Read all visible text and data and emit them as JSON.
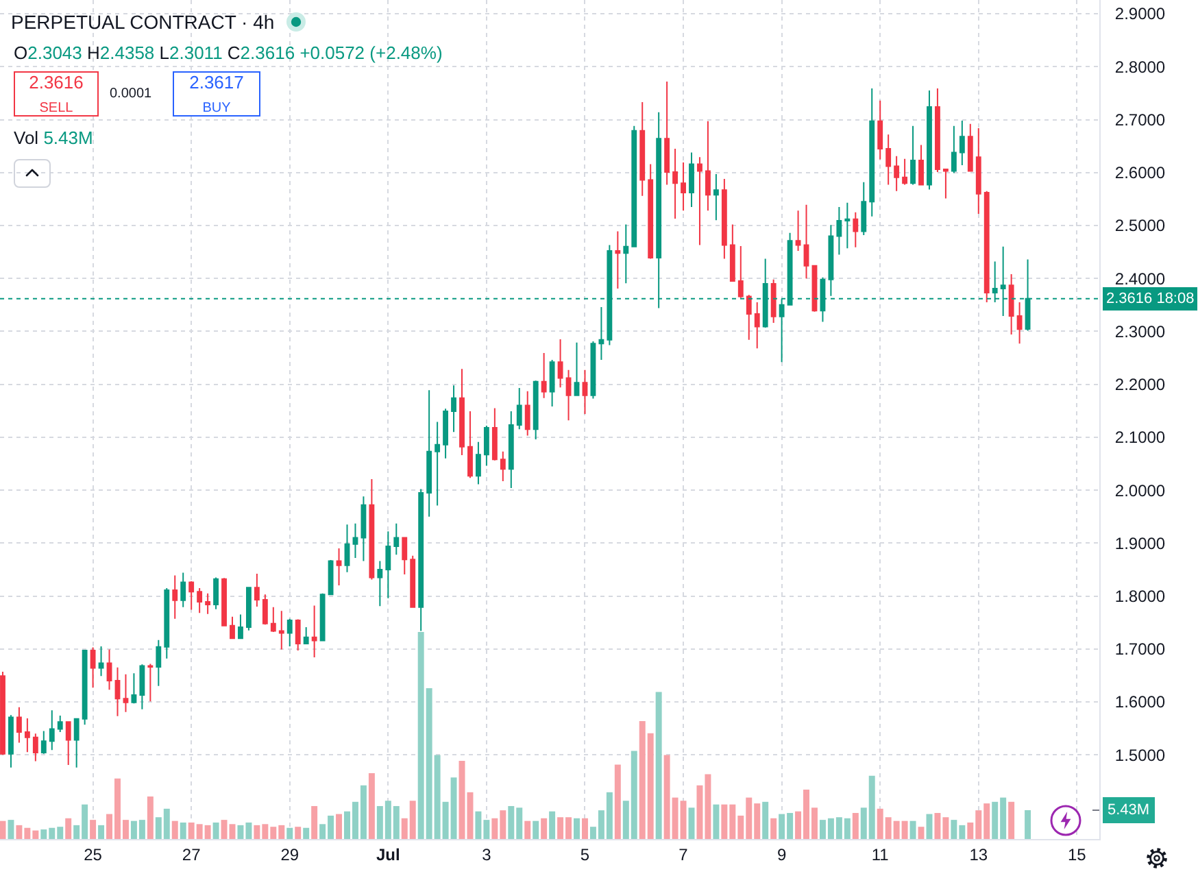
{
  "chart_data": {
    "type": "candlestick",
    "title": "PERPETUAL CONTRACT · 4h",
    "subtitle": "O2.3043 H2.4358 L2.3011 C2.3616 +0.0572 (+2.48%)",
    "annotations": [
      "2.3616\nSELL",
      "0.0001",
      "2.3617\nBUY",
      "Vol 5.43M"
    ],
    "x": [
      "--06-23T04:00",
      "--06-23T08:00",
      "--06-23T12:00",
      "--06-23T16:00",
      "--06-23T20:00",
      "--06-24T00:00",
      "--06-24T04:00",
      "--06-24T08:00",
      "--06-24T12:00",
      "--06-24T16:00",
      "--06-24T20:00",
      "--06-25T00:00",
      "--06-25T04:00",
      "--06-25T08:00",
      "--06-25T12:00",
      "--06-25T16:00",
      "--06-25T20:00",
      "--06-26T00:00",
      "--06-26T04:00",
      "--06-26T08:00",
      "--06-26T12:00",
      "--06-26T16:00",
      "--06-26T20:00",
      "--06-27T00:00",
      "--06-27T04:00",
      "--06-27T08:00",
      "--06-27T12:00",
      "--06-27T16:00",
      "--06-27T20:00",
      "--06-28T00:00",
      "--06-28T04:00",
      "--06-28T08:00",
      "--06-28T12:00",
      "--06-28T16:00",
      "--06-28T20:00",
      "--06-29T00:00",
      "--06-29T04:00",
      "--06-29T08:00",
      "--06-29T12:00",
      "--06-29T16:00",
      "--06-29T20:00",
      "--06-30T00:00",
      "--06-30T04:00",
      "--06-30T08:00",
      "--06-30T12:00",
      "--06-30T16:00",
      "--06-30T20:00",
      "--07-01T00:00",
      "--07-01T04:00",
      "--07-01T08:00",
      "--07-01T12:00",
      "--07-01T16:00",
      "--07-01T20:00",
      "--07-02T00:00",
      "--07-02T04:00",
      "--07-02T08:00",
      "--07-02T12:00",
      "--07-02T16:00",
      "--07-02T20:00",
      "--07-03T00:00",
      "--07-03T04:00",
      "--07-03T08:00",
      "--07-03T12:00",
      "--07-03T16:00",
      "--07-03T20:00",
      "--07-04T00:00",
      "--07-04T04:00",
      "--07-04T08:00",
      "--07-04T12:00",
      "--07-04T16:00",
      "--07-04T20:00",
      "--07-05T00:00",
      "--07-05T04:00",
      "--07-05T08:00",
      "--07-05T12:00",
      "--07-05T16:00",
      "--07-05T20:00",
      "--07-06T00:00",
      "--07-06T04:00",
      "--07-06T08:00",
      "--07-06T12:00",
      "--07-06T16:00",
      "--07-06T20:00",
      "--07-07T00:00",
      "--07-07T04:00",
      "--07-07T08:00",
      "--07-07T12:00",
      "--07-07T16:00",
      "--07-07T20:00",
      "--07-08T00:00",
      "--07-08T04:00",
      "--07-08T08:00",
      "--07-08T12:00",
      "--07-08T16:00",
      "--07-08T20:00",
      "--07-09T00:00",
      "--07-09T04:00",
      "--07-09T08:00",
      "--07-09T12:00",
      "--07-09T16:00",
      "--07-09T20:00",
      "--07-10T00:00",
      "--07-10T04:00",
      "--07-10T08:00",
      "--07-10T12:00",
      "--07-10T16:00",
      "--07-10T20:00",
      "--07-11T00:00",
      "--07-11T04:00",
      "--07-11T08:00",
      "--07-11T12:00",
      "--07-11T16:00",
      "--07-11T20:00",
      "--07-12T00:00",
      "--07-12T04:00",
      "--07-12T08:00",
      "--07-12T12:00",
      "--07-12T16:00",
      "--07-12T20:00",
      "--07-13T00:00",
      "--07-13T04:00",
      "--07-13T08:00",
      "--07-13T12:00",
      "--07-13T16:00",
      "--07-13T20:00",
      "--07-14T00:00"
    ],
    "series": [
      {
        "type": "bar",
        "axis": "y2",
        "colors": [
          "#f7a1a6",
          "#8fd1c6",
          "#f7a1a6",
          "#f7a1a6",
          "#f7a1a6",
          "#8fd1c6",
          "#8fd1c6",
          "#8fd1c6",
          "#f7a1a6",
          "#8fd1c6",
          "#8fd1c6",
          "#f7a1a6",
          "#8fd1c6",
          "#f7a1a6",
          "#f7a1a6",
          "#f7a1a6",
          "#8fd1c6",
          "#8fd1c6",
          "#f7a1a6",
          "#8fd1c6",
          "#8fd1c6",
          "#f7a1a6",
          "#8fd1c6",
          "#f7a1a6",
          "#f7a1a6",
          "#f7a1a6",
          "#8fd1c6",
          "#f7a1a6",
          "#f7a1a6",
          "#8fd1c6",
          "#8fd1c6",
          "#f7a1a6",
          "#f7a1a6",
          "#f7a1a6",
          "#f7a1a6",
          "#8fd1c6",
          "#f7a1a6",
          "#8fd1c6",
          "#f7a1a6",
          "#8fd1c6",
          "#8fd1c6",
          "#f7a1a6",
          "#8fd1c6",
          "#8fd1c6",
          "#8fd1c6",
          "#f7a1a6",
          "#8fd1c6",
          "#8fd1c6",
          "#8fd1c6",
          "#f7a1a6",
          "#f7a1a6",
          "#8fd1c6",
          "#8fd1c6",
          "#8fd1c6",
          "#8fd1c6",
          "#8fd1c6",
          "#f7a1a6",
          "#f7a1a6",
          "#8fd1c6",
          "#8fd1c6",
          "#f7a1a6",
          "#f7a1a6",
          "#8fd1c6",
          "#8fd1c6",
          "#f7a1a6",
          "#8fd1c6",
          "#f7a1a6",
          "#8fd1c6",
          "#f7a1a6",
          "#f7a1a6",
          "#8fd1c6",
          "#f7a1a6",
          "#8fd1c6",
          "#8fd1c6",
          "#8fd1c6",
          "#f7a1a6",
          "#8fd1c6",
          "#8fd1c6",
          "#f7a1a6",
          "#f7a1a6",
          "#8fd1c6",
          "#f7a1a6",
          "#f7a1a6",
          "#f7a1a6",
          "#8fd1c6",
          "#f7a1a6",
          "#f7a1a6",
          "#8fd1c6",
          "#f7a1a6",
          "#f7a1a6",
          "#f7a1a6",
          "#f7a1a6",
          "#f7a1a6",
          "#8fd1c6",
          "#f7a1a6",
          "#8fd1c6",
          "#8fd1c6",
          "#f7a1a6",
          "#f7a1a6",
          "#f7a1a6",
          "#8fd1c6",
          "#8fd1c6",
          "#8fd1c6",
          "#8fd1c6",
          "#f7a1a6",
          "#8fd1c6",
          "#8fd1c6",
          "#f7a1a6",
          "#f7a1a6",
          "#f7a1a6",
          "#f7a1a6",
          "#8fd1c6",
          "#f7a1a6",
          "#8fd1c6",
          "#f7a1a6",
          "#f7a1a6",
          "#8fd1c6",
          "#8fd1c6",
          "#f7a1a6",
          "#f7a1a6",
          "#f7a1a6",
          "#8fd1c6",
          "#8fd1c6",
          "#f7a1a6",
          "#f7a1a6",
          "#8fd1c6"
        ],
        "values": [
          3.4,
          3.6,
          2.6,
          2.1,
          1.6,
          1.8,
          2.1,
          2.3,
          3.9,
          2.6,
          6.5,
          3.6,
          2.6,
          4.7,
          11.4,
          3.6,
          3.4,
          3.6,
          8.0,
          4.1,
          5.7,
          3.4,
          3.1,
          3.1,
          2.8,
          2.6,
          3.1,
          3.6,
          2.8,
          2.6,
          3.1,
          2.6,
          2.8,
          2.3,
          2.6,
          2.1,
          2.3,
          2.1,
          6.2,
          2.8,
          4.4,
          4.7,
          5.2,
          7.0,
          10.1,
          12.4,
          6.2,
          7.2,
          6.2,
          3.9,
          7.2,
          39.0,
          28.4,
          15.8,
          7.0,
          11.6,
          14.7,
          8.8,
          5.2,
          3.6,
          3.9,
          5.4,
          6.2,
          5.9,
          3.4,
          3.4,
          3.9,
          5.2,
          4.1,
          4.1,
          3.9,
          3.9,
          2.3,
          5.4,
          8.8,
          14.0,
          7.2,
          16.6,
          22.2,
          19.9,
          27.7,
          15.8,
          7.8,
          7.2,
          5.9,
          10.1,
          12.2,
          6.5,
          6.5,
          6.5,
          4.4,
          7.8,
          6.7,
          7.0,
          3.9,
          4.7,
          4.9,
          5.2,
          9.3,
          5.9,
          3.6,
          3.9,
          4.1,
          3.9,
          4.9,
          5.9,
          11.9,
          5.7,
          4.1,
          3.4,
          3.4,
          3.4,
          2.3,
          4.7,
          4.9,
          4.1,
          3.6,
          2.6,
          3.1,
          5.4,
          6.7,
          7.0,
          7.8,
          7.0,
          null,
          5.43
        ]
      },
      {
        "colors": [
          "#f23645",
          "#089981",
          "#f23645",
          "#f23645",
          "#f23645",
          "#089981",
          "#089981",
          "#089981",
          "#f23645",
          "#089981",
          "#089981",
          "#f23645",
          "#089981",
          "#f23645",
          "#f23645",
          "#f23645",
          "#089981",
          "#089981",
          "#f23645",
          "#089981",
          "#089981",
          "#f23645",
          "#089981",
          "#f23645",
          "#f23645",
          "#f23645",
          "#089981",
          "#f23645",
          "#f23645",
          "#089981",
          "#089981",
          "#f23645",
          "#f23645",
          "#f23645",
          "#f23645",
          "#089981",
          "#f23645",
          "#089981",
          "#f23645",
          "#089981",
          "#089981",
          "#f23645",
          "#089981",
          "#089981",
          "#089981",
          "#f23645",
          "#089981",
          "#089981",
          "#089981",
          "#f23645",
          "#f23645",
          "#089981",
          "#089981",
          "#089981",
          "#089981",
          "#089981",
          "#f23645",
          "#f23645",
          "#089981",
          "#089981",
          "#f23645",
          "#f23645",
          "#089981",
          "#089981",
          "#f23645",
          "#089981",
          "#f23645",
          "#089981",
          "#f23645",
          "#f23645",
          "#089981",
          "#f23645",
          "#089981",
          "#089981",
          "#089981",
          "#f23645",
          "#089981",
          "#089981",
          "#f23645",
          "#f23645",
          "#089981",
          "#f23645",
          "#f23645",
          "#f23645",
          "#089981",
          "#f23645",
          "#f23645",
          "#089981",
          "#f23645",
          "#f23645",
          "#f23645",
          "#f23645",
          "#f23645",
          "#089981",
          "#f23645",
          "#089981",
          "#089981",
          "#f23645",
          "#f23645",
          "#f23645",
          "#089981",
          "#089981",
          "#089981",
          "#089981",
          "#f23645",
          "#089981",
          "#089981",
          "#f23645",
          "#f23645",
          "#f23645",
          "#f23645",
          "#089981",
          "#f23645",
          "#089981",
          "#f23645",
          "#f23645",
          "#089981",
          "#089981",
          "#f23645",
          "#f23645",
          "#f23645",
          "#089981",
          "#089981",
          "#f23645",
          "#f23645",
          "#089981"
        ],
        "ohlc": [
          [
            1.649,
            1.657,
            1.5,
            1.502
          ],
          [
            1.502,
            1.575,
            1.476,
            1.571
          ],
          [
            1.571,
            1.59,
            1.523,
            1.543
          ],
          [
            1.543,
            1.569,
            1.505,
            1.533
          ],
          [
            1.533,
            1.54,
            1.488,
            1.504
          ],
          [
            1.504,
            1.545,
            1.502,
            1.526
          ],
          [
            1.526,
            1.584,
            1.509,
            1.549
          ],
          [
            1.549,
            1.574,
            1.543,
            1.562
          ],
          [
            1.562,
            1.563,
            1.481,
            1.528
          ],
          [
            1.528,
            1.569,
            1.476,
            1.568
          ],
          [
            1.568,
            1.697,
            1.557,
            1.697
          ],
          [
            1.697,
            1.703,
            1.627,
            1.664
          ],
          [
            1.664,
            1.705,
            1.649,
            1.673
          ],
          [
            1.673,
            1.699,
            1.623,
            1.64
          ],
          [
            1.64,
            1.665,
            1.573,
            1.606
          ],
          [
            1.606,
            1.652,
            1.581,
            1.599
          ],
          [
            1.599,
            1.654,
            1.597,
            1.613
          ],
          [
            1.613,
            1.671,
            1.586,
            1.668
          ],
          [
            1.668,
            1.672,
            1.601,
            1.666
          ],
          [
            1.666,
            1.717,
            1.63,
            1.704
          ],
          [
            1.704,
            1.815,
            1.682,
            1.811
          ],
          [
            1.811,
            1.839,
            1.757,
            1.792
          ],
          [
            1.792,
            1.844,
            1.779,
            1.826
          ],
          [
            1.826,
            1.828,
            1.774,
            1.808
          ],
          [
            1.808,
            1.815,
            1.768,
            1.789
          ],
          [
            1.789,
            1.805,
            1.766,
            1.784
          ],
          [
            1.784,
            1.835,
            1.775,
            1.832
          ],
          [
            1.832,
            1.834,
            1.744,
            1.744
          ],
          [
            1.744,
            1.761,
            1.72,
            1.72
          ],
          [
            1.72,
            1.765,
            1.719,
            1.741
          ],
          [
            1.741,
            1.816,
            1.735,
            1.816
          ],
          [
            1.816,
            1.842,
            1.78,
            1.793
          ],
          [
            1.793,
            1.803,
            1.746,
            1.748
          ],
          [
            1.748,
            1.779,
            1.732,
            1.734
          ],
          [
            1.734,
            1.772,
            1.699,
            1.73
          ],
          [
            1.73,
            1.757,
            1.705,
            1.754
          ],
          [
            1.754,
            1.756,
            1.697,
            1.71
          ],
          [
            1.71,
            1.741,
            1.709,
            1.722
          ],
          [
            1.722,
            1.782,
            1.684,
            1.716
          ],
          [
            1.716,
            1.805,
            1.715,
            1.803
          ],
          [
            1.803,
            1.868,
            1.802,
            1.866
          ],
          [
            1.866,
            1.89,
            1.82,
            1.858
          ],
          [
            1.858,
            1.935,
            1.845,
            1.898
          ],
          [
            1.898,
            1.937,
            1.872,
            1.91
          ],
          [
            1.91,
            1.988,
            1.866,
            1.972
          ],
          [
            1.972,
            2.021,
            1.831,
            1.835
          ],
          [
            1.835,
            1.866,
            1.781,
            1.85
          ],
          [
            1.85,
            1.922,
            1.796,
            1.894
          ],
          [
            1.894,
            1.937,
            1.878,
            1.91
          ],
          [
            1.91,
            1.911,
            1.841,
            1.869
          ],
          [
            1.869,
            1.876,
            1.779,
            1.779
          ],
          [
            1.779,
            2.002,
            1.734,
            1.995
          ],
          [
            1.995,
            2.189,
            1.95,
            2.073
          ],
          [
            2.073,
            2.129,
            1.971,
            2.086
          ],
          [
            2.086,
            2.154,
            2.06,
            2.149
          ],
          [
            2.149,
            2.198,
            2.11,
            2.174
          ],
          [
            2.174,
            2.229,
            2.066,
            2.082
          ],
          [
            2.082,
            2.149,
            2.023,
            2.027
          ],
          [
            2.027,
            2.091,
            2.011,
            2.067
          ],
          [
            2.067,
            2.122,
            2.046,
            2.118
          ],
          [
            2.118,
            2.155,
            2.056,
            2.058
          ],
          [
            2.058,
            2.073,
            2.017,
            2.04
          ],
          [
            2.04,
            2.149,
            2.004,
            2.123
          ],
          [
            2.123,
            2.193,
            2.115,
            2.16
          ],
          [
            2.16,
            2.187,
            2.103,
            2.115
          ],
          [
            2.115,
            2.207,
            2.096,
            2.205
          ],
          [
            2.205,
            2.259,
            2.174,
            2.186
          ],
          [
            2.186,
            2.246,
            2.158,
            2.242
          ],
          [
            2.242,
            2.285,
            2.194,
            2.212
          ],
          [
            2.212,
            2.227,
            2.132,
            2.179
          ],
          [
            2.179,
            2.279,
            2.178,
            2.203
          ],
          [
            2.203,
            2.227,
            2.144,
            2.179
          ],
          [
            2.179,
            2.281,
            2.173,
            2.277
          ],
          [
            2.277,
            2.346,
            2.246,
            2.284
          ],
          [
            2.284,
            2.463,
            2.274,
            2.452
          ],
          [
            2.452,
            2.489,
            2.381,
            2.448
          ],
          [
            2.448,
            2.502,
            2.391,
            2.46
          ],
          [
            2.46,
            2.688,
            2.459,
            2.679
          ],
          [
            2.679,
            2.733,
            2.556,
            2.586
          ],
          [
            2.586,
            2.616,
            2.437,
            2.439
          ],
          [
            2.439,
            2.714,
            2.344,
            2.664
          ],
          [
            2.664,
            2.772,
            2.577,
            2.601
          ],
          [
            2.601,
            2.645,
            2.513,
            2.58
          ],
          [
            2.58,
            2.619,
            2.528,
            2.562
          ],
          [
            2.562,
            2.638,
            2.535,
            2.616
          ],
          [
            2.616,
            2.629,
            2.463,
            2.603
          ],
          [
            2.603,
            2.697,
            2.528,
            2.558
          ],
          [
            2.558,
            2.597,
            2.51,
            2.567
          ],
          [
            2.567,
            2.588,
            2.437,
            2.463
          ],
          [
            2.463,
            2.502,
            2.394,
            2.395
          ],
          [
            2.395,
            2.461,
            2.363,
            2.366
          ],
          [
            2.366,
            2.369,
            2.284,
            2.333
          ],
          [
            2.333,
            2.355,
            2.268,
            2.309
          ],
          [
            2.309,
            2.437,
            2.307,
            2.39
          ],
          [
            2.39,
            2.398,
            2.316,
            2.328
          ],
          [
            2.328,
            2.361,
            2.242,
            2.35
          ],
          [
            2.35,
            2.486,
            2.349,
            2.471
          ],
          [
            2.471,
            2.528,
            2.452,
            2.463
          ],
          [
            2.463,
            2.539,
            2.4,
            2.424
          ],
          [
            2.424,
            2.425,
            2.337,
            2.339
          ],
          [
            2.339,
            2.402,
            2.318,
            2.398
          ],
          [
            2.398,
            2.501,
            2.367,
            2.48
          ],
          [
            2.48,
            2.535,
            2.445,
            2.509
          ],
          [
            2.509,
            2.543,
            2.457,
            2.512
          ],
          [
            2.512,
            2.525,
            2.459,
            2.489
          ],
          [
            2.489,
            2.582,
            2.482,
            2.545
          ],
          [
            2.545,
            2.759,
            2.517,
            2.697
          ],
          [
            2.697,
            2.736,
            2.625,
            2.645
          ],
          [
            2.645,
            2.672,
            2.577,
            2.612
          ],
          [
            2.612,
            2.631,
            2.565,
            2.591
          ],
          [
            2.591,
            2.626,
            2.577,
            2.58
          ],
          [
            2.58,
            2.688,
            2.577,
            2.623
          ],
          [
            2.623,
            2.652,
            2.577,
            2.577
          ],
          [
            2.577,
            2.755,
            2.568,
            2.724
          ],
          [
            2.724,
            2.759,
            2.601,
            2.606
          ],
          [
            2.606,
            2.607,
            2.551,
            2.603
          ],
          [
            2.603,
            2.688,
            2.599,
            2.638
          ],
          [
            2.638,
            2.698,
            2.614,
            2.668
          ],
          [
            2.668,
            2.692,
            2.603,
            2.603
          ],
          [
            2.629,
            2.684,
            2.522,
            2.56
          ],
          [
            2.562,
            2.565,
            2.355,
            2.373
          ],
          [
            2.373,
            2.432,
            2.355,
            2.381
          ],
          [
            2.381,
            2.46,
            2.329,
            2.387
          ],
          [
            2.387,
            2.408,
            2.294,
            2.329
          ],
          [
            2.329,
            2.355,
            2.277,
            2.304
          ],
          [
            2.3043,
            2.4358,
            2.3011,
            2.3616
          ]
        ]
      }
    ],
    "xlim": [
      "--06-23T02:40",
      "--07-15T10:55"
    ],
    "xticks": [
      {
        "value": "--06-25",
        "label": "25"
      },
      {
        "value": "--06-27",
        "label": "27"
      },
      {
        "value": "--06-29",
        "label": "29"
      },
      {
        "value": "--07-01",
        "label": "Jul"
      },
      {
        "value": "--07-03",
        "label": "3"
      },
      {
        "value": "--07-05",
        "label": "5"
      },
      {
        "value": "--07-07",
        "label": "7"
      },
      {
        "value": "--07-09",
        "label": "9"
      },
      {
        "value": "--07-11",
        "label": "11"
      },
      {
        "value": "--07-13",
        "label": "13"
      },
      {
        "value": "--07-15",
        "label": "15"
      }
    ],
    "ylim": [
      1.341,
      2.926
    ],
    "yticks": [
      {
        "value": 1.5,
        "label": "1.5000"
      },
      {
        "value": 1.6,
        "label": "1.6000"
      },
      {
        "value": 1.7,
        "label": "1.7000"
      },
      {
        "value": 1.8,
        "label": "1.8000"
      },
      {
        "value": 1.9,
        "label": "1.9000"
      },
      {
        "value": 2.0,
        "label": "2.0000"
      },
      {
        "value": 2.1,
        "label": "2.1000"
      },
      {
        "value": 2.2,
        "label": "2.2000"
      },
      {
        "value": 2.3,
        "label": "2.3000"
      },
      {
        "value": 2.4,
        "label": "2.4000"
      },
      {
        "value": 2.5,
        "label": "2.5000"
      },
      {
        "value": 2.6,
        "label": "2.6000"
      },
      {
        "value": 2.7,
        "label": "2.7000"
      },
      {
        "value": 2.8,
        "label": "2.8000"
      },
      {
        "value": 2.9,
        "label": "2.9000"
      }
    ],
    "y2lim": [
      0,
      158
    ],
    "y2ticks": [
      {
        "value": 5.43,
        "label": "5.43M"
      }
    ],
    "ref_lines": [
      {
        "axis": "y",
        "value": 2.3616,
        "label": "2.3616 18:08",
        "color": "#089981",
        "line_style": "dotted"
      }
    ],
    "grid": true
  }
}
